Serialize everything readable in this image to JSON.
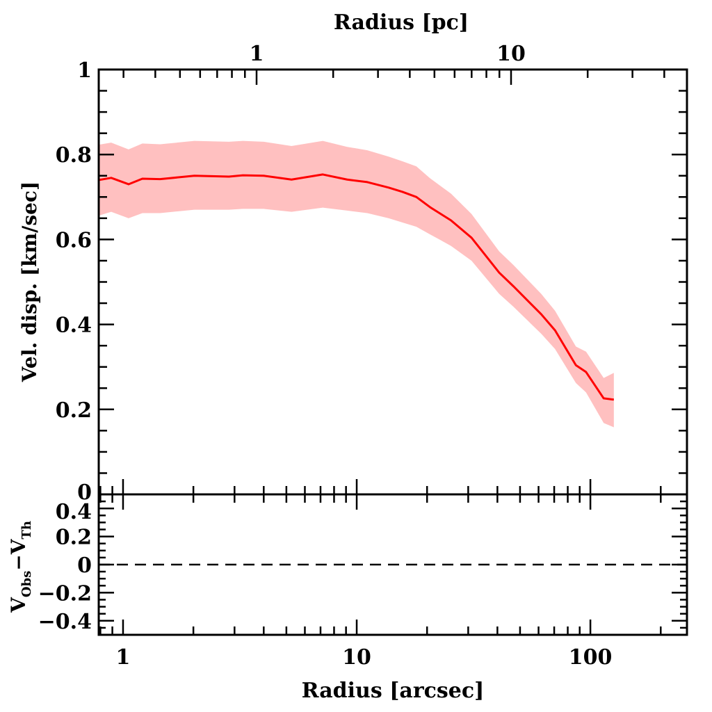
{
  "chart_data": [
    {
      "type": "line",
      "panel": "upper",
      "xlabel_top": "Radius [pc]",
      "xscale": "log",
      "top_axis": {
        "scale": "log",
        "tick_labels": [
          "1",
          "10"
        ],
        "ticks": [
          1,
          10
        ]
      },
      "ylabel": "Vel. disp. [km/sec]",
      "xlim": [
        0.787,
        259
      ],
      "ylim": [
        0,
        1
      ],
      "y_tick_labels": [
        "0",
        "0.2",
        "0.4",
        "0.6",
        "0.8",
        "1"
      ],
      "y_ticks": [
        0,
        0.2,
        0.4,
        0.6,
        0.8,
        1
      ],
      "grid": false,
      "colors": {
        "line": "#ff0000",
        "band": "#ffc0c0"
      },
      "series": [
        {
          "x": [
            0.787,
            0.89,
            1.056,
            1.21,
            1.44,
            2.02,
            2.84,
            3.26,
            4.0,
            5.26,
            7.16,
            9.1,
            11.1,
            13.7,
            15.7,
            18.0,
            20.6,
            25.3,
            31.0,
            40.7,
            46.8,
            61.6,
            70.6,
            86.7,
            95.8,
            114,
            126
          ],
          "y": [
            0.74,
            0.745,
            0.73,
            0.743,
            0.742,
            0.75,
            0.748,
            0.751,
            0.75,
            0.741,
            0.753,
            0.741,
            0.735,
            0.722,
            0.712,
            0.7,
            0.676,
            0.645,
            0.604,
            0.522,
            0.49,
            0.424,
            0.386,
            0.304,
            0.288,
            0.226,
            0.223
          ],
          "lower": [
            0.656,
            0.665,
            0.65,
            0.662,
            0.662,
            0.67,
            0.67,
            0.672,
            0.672,
            0.665,
            0.675,
            0.668,
            0.662,
            0.65,
            0.64,
            0.63,
            0.612,
            0.585,
            0.55,
            0.472,
            0.442,
            0.378,
            0.342,
            0.262,
            0.24,
            0.168,
            0.158
          ],
          "upper": [
            0.823,
            0.828,
            0.812,
            0.826,
            0.824,
            0.832,
            0.83,
            0.832,
            0.83,
            0.82,
            0.832,
            0.818,
            0.81,
            0.795,
            0.784,
            0.772,
            0.744,
            0.708,
            0.66,
            0.572,
            0.54,
            0.472,
            0.432,
            0.348,
            0.336,
            0.274,
            0.286
          ]
        }
      ]
    },
    {
      "type": "line",
      "panel": "lower",
      "xlabel": "Radius [arcsec]",
      "ylabel_main": "V",
      "ylabel_sub1": "Obs",
      "ylabel_dash": "−V",
      "ylabel_sub2": "Th",
      "xscale": "log",
      "xlim": [
        0.787,
        259
      ],
      "ylim": [
        -0.5,
        0.5
      ],
      "x_tick_labels": [
        "1",
        "10",
        "100"
      ],
      "x_ticks": [
        1,
        10,
        100
      ],
      "y_tick_labels": [
        "−0.4",
        "−0.2",
        "0",
        "0.2",
        "0.4"
      ],
      "y_ticks": [
        -0.4,
        -0.2,
        0,
        0.2,
        0.4
      ],
      "reference_line": {
        "y": 0,
        "style": "dashed"
      }
    }
  ]
}
